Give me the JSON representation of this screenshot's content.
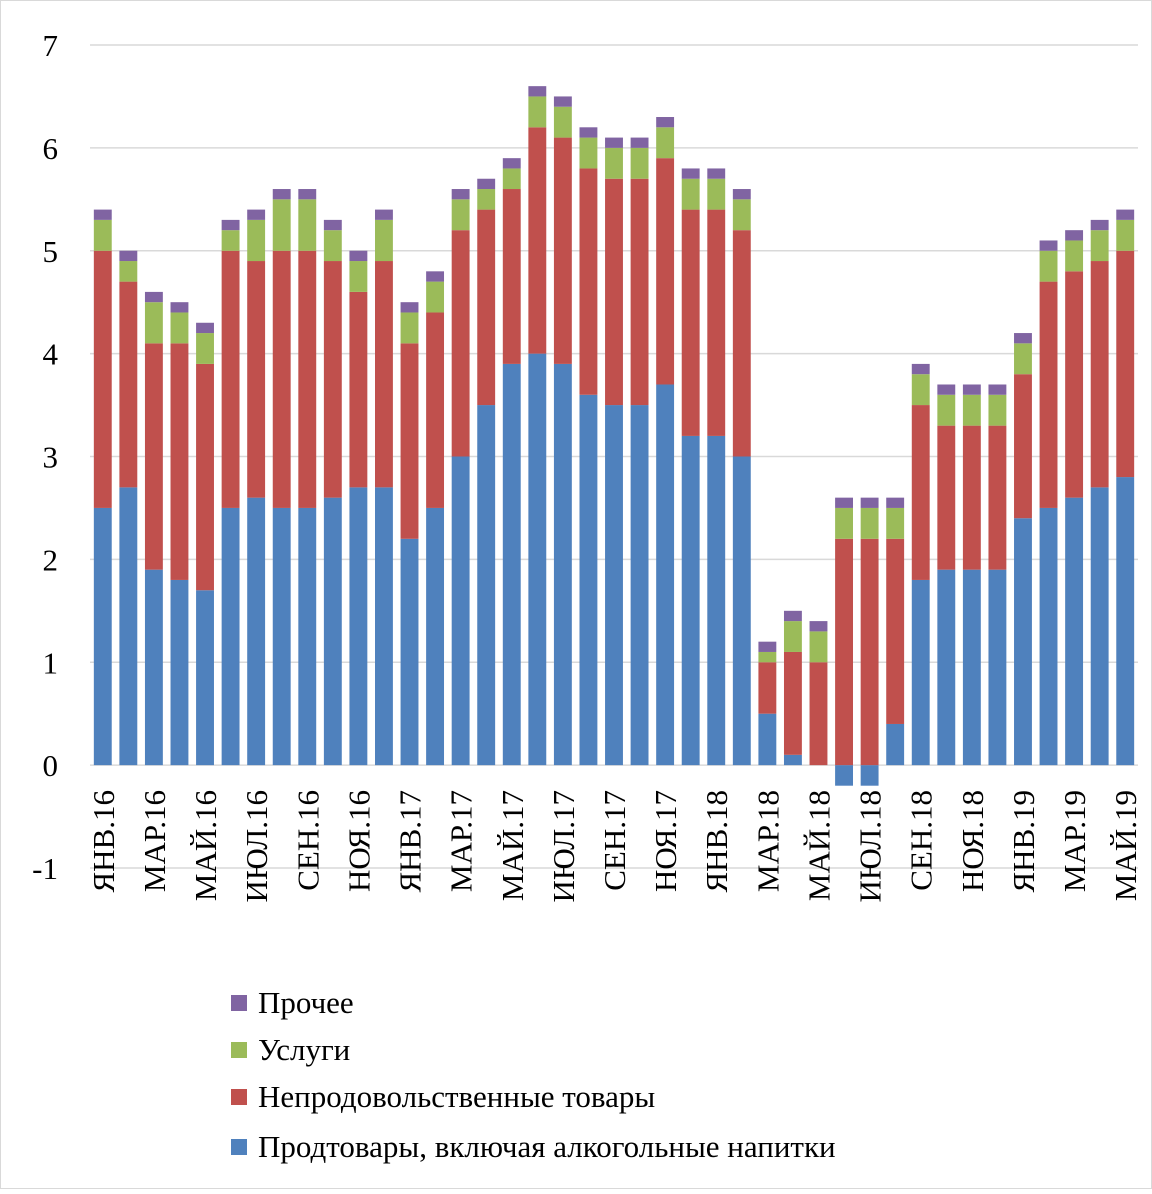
{
  "chart_data": {
    "type": "stacked_bar",
    "categories": [
      "ЯНВ.16",
      null,
      "МАР.16",
      null,
      "МАЙ.16",
      null,
      "ИЮЛ.16",
      null,
      "СЕН.16",
      null,
      "НОЯ.16",
      null,
      "ЯНВ.17",
      null,
      "МАР.17",
      null,
      "МАЙ.17",
      null,
      "ИЮЛ.17",
      null,
      "СЕН.17",
      null,
      "НОЯ.17",
      null,
      "ЯНВ.18",
      null,
      "МАР.18",
      null,
      "МАЙ.18",
      null,
      "ИЮЛ.18",
      null,
      "СЕН.18",
      null,
      "НОЯ.18",
      null,
      "ЯНВ.19",
      null,
      "МАР.19",
      null,
      "МАЙ.19"
    ],
    "series": [
      {
        "name": "Продтовары, включая алкогольные напитки",
        "color": "#4f81bd",
        "values": [
          2.5,
          2.7,
          1.9,
          1.8,
          1.7,
          2.5,
          2.6,
          2.5,
          2.5,
          2.6,
          2.7,
          2.7,
          2.2,
          2.5,
          3.0,
          3.5,
          3.9,
          4.0,
          3.9,
          3.6,
          3.5,
          3.5,
          3.7,
          3.2,
          3.2,
          3.0,
          0.5,
          0.1,
          0,
          -0.2,
          -0.2,
          0.4,
          1.8,
          1.9,
          1.9,
          1.9,
          2.4,
          2.5,
          2.6,
          2.7,
          2.8
        ]
      },
      {
        "name": "Непродовольственные товары",
        "color": "#c0504d",
        "values": [
          2.5,
          2.0,
          2.2,
          2.3,
          2.2,
          2.5,
          2.3,
          2.5,
          2.5,
          2.3,
          1.9,
          2.2,
          1.9,
          1.9,
          2.2,
          1.9,
          1.7,
          2.2,
          2.2,
          2.2,
          2.2,
          2.2,
          2.2,
          2.2,
          2.2,
          2.2,
          0.5,
          1.0,
          1.0,
          2.2,
          2.2,
          1.8,
          1.7,
          1.4,
          1.4,
          1.4,
          1.4,
          2.2,
          2.2,
          2.2,
          2.2
        ]
      },
      {
        "name": "Услуги",
        "color": "#9bbb59",
        "values": [
          0.3,
          0.2,
          0.4,
          0.3,
          0.3,
          0.2,
          0.4,
          0.5,
          0.5,
          0.3,
          0.3,
          0.4,
          0.3,
          0.3,
          0.3,
          0.2,
          0.2,
          0.3,
          0.3,
          0.3,
          0.3,
          0.3,
          0.3,
          0.3,
          0.3,
          0.3,
          0.1,
          0.3,
          0.3,
          0.3,
          0.3,
          0.3,
          0.3,
          0.3,
          0.3,
          0.3,
          0.3,
          0.3,
          0.3,
          0.3,
          0.3
        ]
      },
      {
        "name": "Прочее",
        "color": "#8064a2",
        "values": [
          0.1,
          0.1,
          0.1,
          0.1,
          0.1,
          0.1,
          0.1,
          0.1,
          0.1,
          0.1,
          0.1,
          0.1,
          0.1,
          0.1,
          0.1,
          0.1,
          0.1,
          0.1,
          0.1,
          0.1,
          0.1,
          0.1,
          0.1,
          0.1,
          0.1,
          0.1,
          0.1,
          0.1,
          0.1,
          0.1,
          0.1,
          0.1,
          0.1,
          0.1,
          0.1,
          0.1,
          0.1,
          0.1,
          0.1,
          0.1,
          0.1
        ]
      }
    ],
    "ylim": [
      -1,
      7
    ],
    "yticks": [
      -1,
      0,
      1,
      2,
      3,
      4,
      5,
      6,
      7
    ],
    "grid": true
  }
}
